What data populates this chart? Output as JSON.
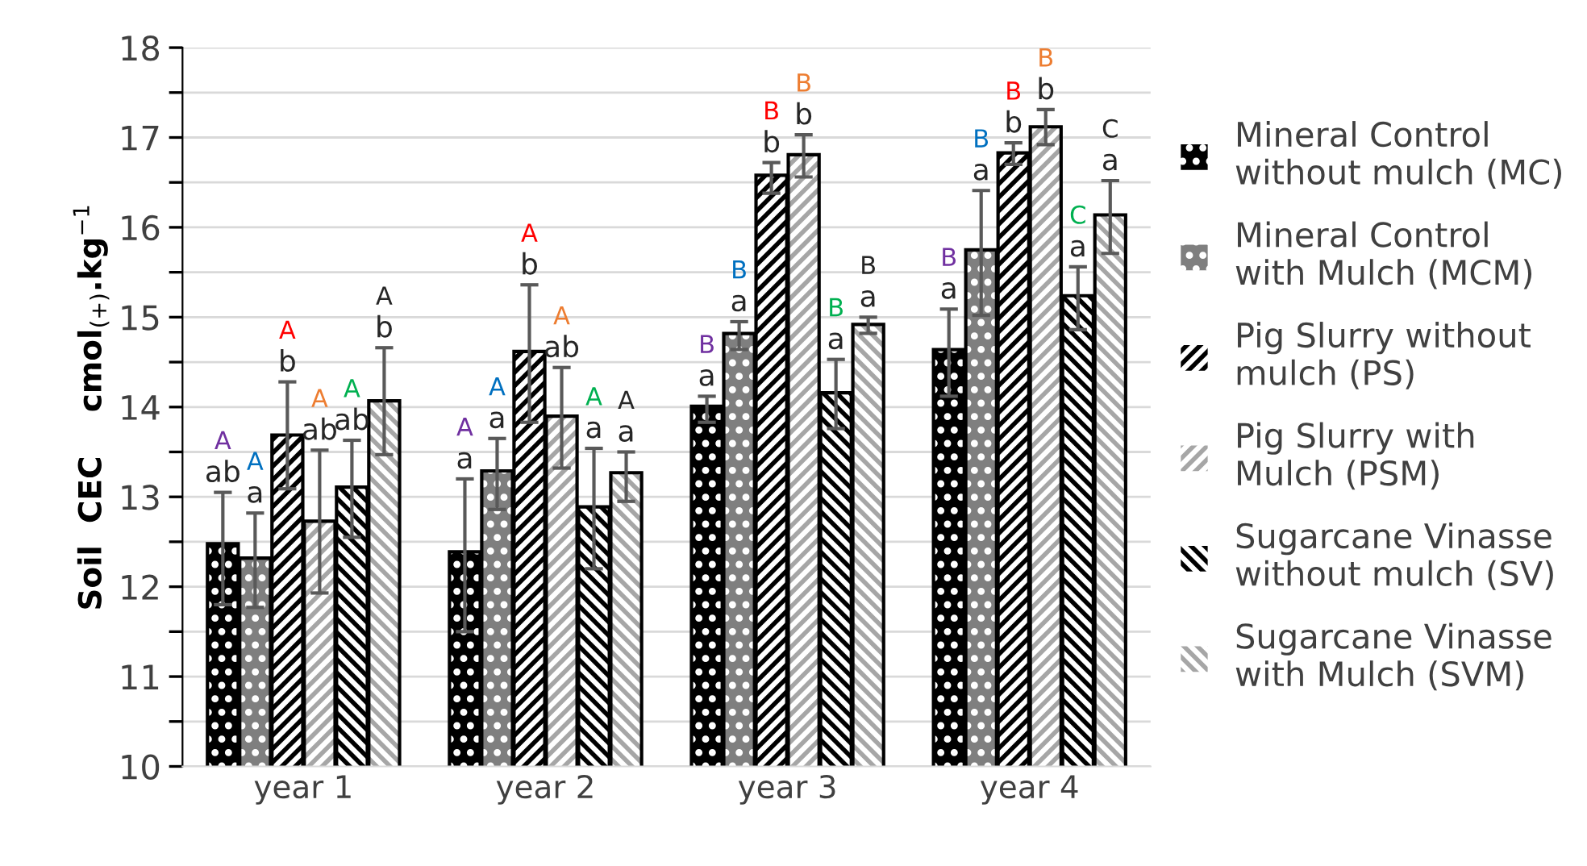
{
  "chart_data": {
    "type": "bar",
    "ylabel": "Soil  CEC    cmol$_{(+)}$.kg$^{−1}$",
    "categories": [
      "year 1",
      "year 2",
      "year 3",
      "year 4"
    ],
    "series": [
      {
        "name": "Mineral Control\nwithout mulch (MC)",
        "color": "#000000",
        "values": [
          12.46,
          12.37,
          13.99,
          14.62
        ],
        "errors": [
          [
            11.8,
            13.05
          ],
          [
            11.5,
            13.2
          ],
          [
            13.83,
            14.12
          ],
          [
            14.12,
            15.09
          ]
        ],
        "value_labels": [
          "A\nab",
          "A\na",
          "B\na",
          "B\na"
        ]
      },
      {
        "name": "Mineral Control\nwith Mulch (MCM)",
        "color": "#7f7f7f",
        "values": [
          12.3,
          13.27,
          14.8,
          15.73
        ],
        "errors": [
          [
            11.77,
            12.82
          ],
          [
            12.86,
            13.65
          ],
          [
            14.64,
            14.95
          ],
          [
            15.02,
            16.41
          ]
        ],
        "value_labels": [
          "A\na",
          "A\na",
          "B\na",
          "B\na"
        ]
      },
      {
        "name": "Pig Slurry without\nmulch (PS)",
        "color": "#ffffff",
        "values": [
          13.67,
          14.6,
          16.56,
          16.81
        ],
        "errors": [
          [
            13.09,
            14.28
          ],
          [
            13.83,
            15.36
          ],
          [
            16.38,
            16.72
          ],
          [
            16.7,
            16.94
          ]
        ],
        "value_labels": [
          "A\nb",
          "A\nb",
          "B\nb",
          "B\nb"
        ]
      },
      {
        "name": "Pig Slurry with\nMulch (PSM)",
        "color": "#ffffff",
        "values": [
          12.71,
          13.88,
          16.79,
          17.1
        ],
        "errors": [
          [
            11.93,
            13.52
          ],
          [
            13.32,
            14.44
          ],
          [
            16.56,
            17.03
          ],
          [
            16.92,
            17.31
          ]
        ],
        "value_labels": [
          "A\nab",
          "A\nab",
          "B\nb",
          "B\nb"
        ]
      },
      {
        "name": "Sugarcane Vinasse\nwithout mulch (SV)",
        "color": "#ffffff",
        "values": [
          13.09,
          12.87,
          14.14,
          15.22
        ],
        "errors": [
          [
            12.55,
            13.63
          ],
          [
            12.2,
            13.54
          ],
          [
            13.76,
            14.53
          ],
          [
            14.86,
            15.56
          ]
        ],
        "value_labels": [
          "A\nab",
          "A\na",
          "B\na",
          "C\na"
        ]
      },
      {
        "name": "Sugarcane Vinasse\nwith Mulch (SVM)",
        "color": "#ffffff",
        "values": [
          14.05,
          13.25,
          14.9,
          16.12
        ],
        "errors": [
          [
            13.47,
            14.66
          ],
          [
            12.95,
            13.5
          ],
          [
            14.82,
            15.0
          ],
          [
            15.71,
            16.52
          ]
        ],
        "value_labels": [
          "A\nb",
          "A\na",
          "B\na",
          "C\na"
        ]
      }
    ],
    "ylim": [
      10,
      18
    ],
    "yticks": [
      10,
      {
        "value": 10.5,
        "label": null
      },
      11,
      {
        "value": 11.5,
        "label": null
      },
      12,
      {
        "value": 12.5,
        "label": null
      },
      13,
      {
        "value": 13.5,
        "label": null
      },
      14,
      {
        "value": 14.5,
        "label": null
      },
      15,
      {
        "value": 15.5,
        "label": null
      },
      16,
      {
        "value": 16.5,
        "label": null
      },
      17,
      {
        "value": 17.5,
        "label": null
      },
      18
    ],
    "grid": "y",
    "legend": "right"
  }
}
